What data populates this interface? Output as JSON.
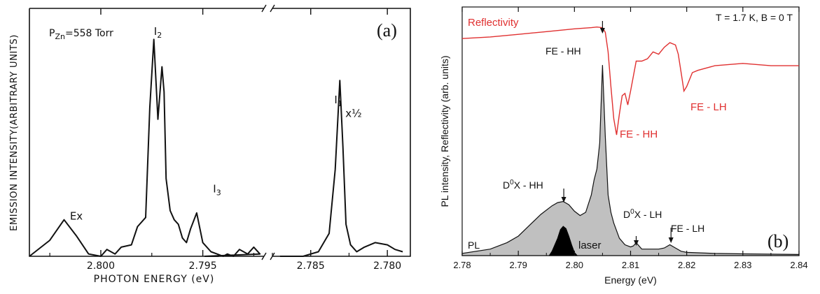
{
  "chart_data": [
    {
      "type": "line",
      "panel_label": "(a)",
      "condition": "558 Torr",
      "condition_symbol": "P",
      "condition_sub": "Zn",
      "condition_eq": "=558 Torr",
      "xlabel": "PHOTON ENERGY (eV)",
      "ylabel": "EMISSION INTENSITY(ARBITRARY UNITS)",
      "x_axis_reversed": true,
      "axis_break_between": [
        2.792,
        2.787
      ],
      "xlim": [
        2.8035,
        2.7785
      ],
      "x_ticks": [
        {
          "value": 2.8,
          "label": "2.800"
        },
        {
          "value": 2.795,
          "label": "2.795"
        },
        {
          "value": 2.785,
          "label": "2.785"
        },
        {
          "value": 2.78,
          "label": "2.780"
        }
      ],
      "ylim": [
        0,
        1.0
      ],
      "annotations": [
        {
          "text": "Ex",
          "x": 2.8012,
          "y": 0.16
        },
        {
          "text": "I",
          "sub": "2",
          "x": 2.7972,
          "y": 0.97
        },
        {
          "text": "I",
          "sub": "3",
          "x": 2.7943,
          "y": 0.28
        },
        {
          "text": "I",
          "sub": "1",
          "x": 2.7832,
          "y": 0.67
        },
        {
          "text": "x½",
          "x": 2.7822,
          "y": 0.61
        }
      ],
      "series": [
        {
          "values_x": [
            2.8035,
            2.8025,
            2.8018,
            2.8012,
            2.8006,
            2.8,
            2.7997,
            2.7993,
            2.799,
            2.7985,
            2.7982,
            2.7978,
            2.7976,
            2.7974,
            2.7972,
            2.797,
            2.7969,
            2.7968,
            2.7966,
            2.7964,
            2.7962,
            2.796,
            2.7958,
            2.7956,
            2.7953,
            2.795,
            2.7946,
            2.7943,
            2.794,
            2.7938,
            2.7935,
            2.7932,
            2.7928,
            2.7925,
            2.7922,
            2.7919,
            2.7916,
            2.7913,
            2.791
          ],
          "values_y": [
            0.0,
            0.07,
            0.16,
            0.09,
            0.01,
            0.0,
            0.03,
            0.01,
            0.04,
            0.05,
            0.13,
            0.17,
            0.65,
            0.95,
            0.6,
            0.83,
            0.72,
            0.34,
            0.2,
            0.16,
            0.14,
            0.08,
            0.06,
            0.12,
            0.19,
            0.06,
            0.02,
            0.01,
            0.0,
            0.01,
            0.0,
            0.03,
            0.01,
            0.04,
            0.01,
            0.0,
            0.0,
            0.0,
            0.0
          ]
        },
        {
          "values_x": [
            2.787,
            2.7855,
            2.7845,
            2.7838,
            2.7834,
            2.7831,
            2.7829,
            2.7827,
            2.7824,
            2.782,
            2.7815,
            2.7808,
            2.78,
            2.7795,
            2.779
          ],
          "values_y": [
            0.0,
            0.0,
            0.02,
            0.1,
            0.38,
            0.77,
            0.48,
            0.14,
            0.05,
            0.02,
            0.04,
            0.06,
            0.05,
            0.03,
            0.02
          ]
        }
      ]
    },
    {
      "type": "line",
      "panel_label": "(b)",
      "condition": "T = 1.7 K, B = 0 T",
      "xlabel": "Energy (eV)",
      "ylabel": "PL intensity, Reflectivity (arb. units)",
      "xlim": [
        2.78,
        2.84
      ],
      "x_ticks": [
        2.78,
        2.79,
        2.8,
        2.81,
        2.82,
        2.83,
        2.84
      ],
      "x_tick_labels": [
        "2.78",
        "2.79",
        "2.80",
        "2.81",
        "2.82",
        "2.83",
        "2.84"
      ],
      "ylim": [
        0,
        1.0
      ],
      "colors": {
        "reflectivity": "#e03030",
        "pl_fill": "#c0c0c0",
        "laser_fill": "#000000"
      },
      "series": [
        {
          "name": "Reflectivity",
          "x": [
            2.78,
            2.785,
            2.79,
            2.795,
            2.8,
            2.803,
            2.804,
            2.805,
            2.8055,
            2.806,
            2.8065,
            2.807,
            2.8075,
            2.808,
            2.8085,
            2.809,
            2.8095,
            2.81,
            2.811,
            2.812,
            2.813,
            2.814,
            2.815,
            2.816,
            2.817,
            2.818,
            2.8185,
            2.819,
            2.8195,
            2.82,
            2.821,
            2.822,
            2.825,
            2.83,
            2.835,
            2.84
          ],
          "y": [
            0.948,
            0.955,
            0.966,
            0.978,
            0.99,
            0.995,
            0.998,
            0.995,
            0.975,
            0.89,
            0.74,
            0.6,
            0.53,
            0.62,
            0.7,
            0.71,
            0.66,
            0.72,
            0.85,
            0.85,
            0.86,
            0.89,
            0.88,
            0.91,
            0.93,
            0.92,
            0.88,
            0.8,
            0.72,
            0.74,
            0.8,
            0.81,
            0.83,
            0.84,
            0.83,
            0.83
          ]
        },
        {
          "name": "PL",
          "x": [
            2.78,
            2.785,
            2.788,
            2.79,
            2.792,
            2.794,
            2.796,
            2.797,
            2.798,
            2.799,
            2.8,
            2.801,
            2.802,
            2.803,
            2.8035,
            2.804,
            2.8045,
            2.805,
            2.8055,
            2.806,
            2.8065,
            2.807,
            2.808,
            2.809,
            2.81,
            2.8105,
            2.811,
            2.8115,
            2.812,
            2.815,
            2.816,
            2.817,
            2.818,
            2.819,
            2.82,
            2.825,
            2.83,
            2.84
          ],
          "y": [
            0.01,
            0.03,
            0.06,
            0.09,
            0.14,
            0.19,
            0.23,
            0.245,
            0.25,
            0.235,
            0.205,
            0.185,
            0.2,
            0.28,
            0.35,
            0.4,
            0.52,
            0.88,
            0.55,
            0.28,
            0.2,
            0.15,
            0.08,
            0.05,
            0.04,
            0.045,
            0.06,
            0.045,
            0.03,
            0.03,
            0.035,
            0.05,
            0.035,
            0.02,
            0.015,
            0.01,
            0.008,
            0.005
          ]
        },
        {
          "name": "laser",
          "x": [
            2.7955,
            2.796,
            2.797,
            2.7975,
            2.798,
            2.7985,
            2.799,
            2.7995,
            2.8,
            2.8005
          ],
          "y": [
            0.0,
            0.02,
            0.08,
            0.12,
            0.135,
            0.125,
            0.09,
            0.05,
            0.015,
            0.0
          ]
        }
      ],
      "labels": {
        "reflectivity": "Reflectivity",
        "pl": "PL",
        "laser": "laser",
        "fe_hh_top": "FE - HH",
        "fe_hh_refl": "FE - HH",
        "fe_lh_refl": "FE - LH",
        "dx_hh_pre": "D",
        "dx_hh_sup": "0",
        "dx_hh_post": "X - HH",
        "dx_lh_pre": "D",
        "dx_lh_sup": "0",
        "dx_lh_post": "X - LH",
        "fe_lh_pl": "FE - LH"
      }
    }
  ]
}
